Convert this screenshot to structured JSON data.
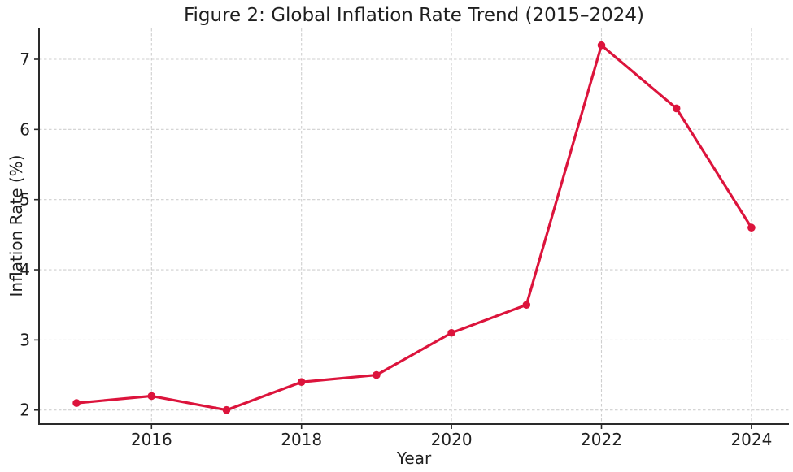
{
  "chart_data": {
    "type": "line",
    "title": "Figure 2: Global Inflation Rate Trend (2015–2024)",
    "xlabel": "Year",
    "ylabel": "Inflation Rate (%)",
    "x": [
      2015,
      2016,
      2017,
      2018,
      2019,
      2020,
      2021,
      2022,
      2023,
      2024
    ],
    "series": [
      {
        "name": "Global Inflation Rate",
        "values": [
          2.1,
          2.2,
          2.0,
          2.4,
          2.5,
          3.1,
          3.5,
          7.2,
          6.3,
          4.6
        ]
      }
    ],
    "xticks": [
      2016,
      2018,
      2020,
      2022,
      2024
    ],
    "yticks": [
      2,
      3,
      4,
      5,
      6,
      7
    ],
    "xlim": [
      2014.5,
      2024.5
    ],
    "ylim": [
      1.8,
      7.44
    ],
    "grid": true,
    "grid_style": "dashed",
    "legend": false,
    "marker": "circle",
    "colors": {
      "line": "#DC143C",
      "marker": "#DC143C",
      "grid": "#CFCFCF",
      "axis": "#2a2a2a",
      "text": "#1f1f1f"
    }
  }
}
